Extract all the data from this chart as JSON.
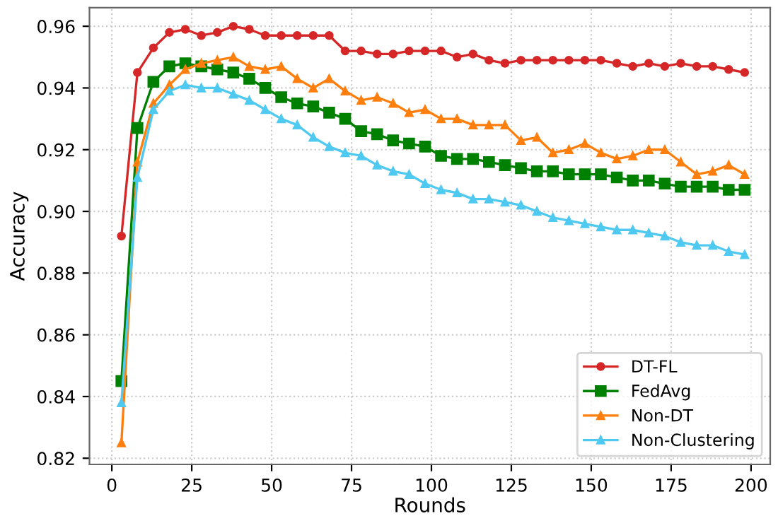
{
  "chart_data": {
    "type": "line",
    "xlabel": "Rounds",
    "ylabel": "Accuracy",
    "xlim": [
      -7,
      206
    ],
    "ylim": [
      0.818,
      0.966
    ],
    "xticks": [
      0,
      25,
      50,
      75,
      100,
      125,
      150,
      175,
      200
    ],
    "yticks": [
      {
        "value": 0.82,
        "label": "0.82"
      },
      {
        "value": 0.84,
        "label": "0.84"
      },
      {
        "value": 0.86,
        "label": "0.86"
      },
      {
        "value": 0.88,
        "label": "0.88"
      },
      {
        "value": 0.9,
        "label": "0.90"
      },
      {
        "value": 0.92,
        "label": "0.92"
      },
      {
        "value": 0.94,
        "label": "0.94"
      },
      {
        "value": 0.96,
        "label": "0.96"
      }
    ],
    "grid": true,
    "legend": "bottom right",
    "line_style": "solid",
    "x": [
      3,
      8,
      13,
      18,
      23,
      28,
      33,
      38,
      43,
      48,
      53,
      58,
      63,
      68,
      73,
      78,
      83,
      88,
      93,
      98,
      103,
      108,
      113,
      118,
      123,
      128,
      133,
      138,
      143,
      148,
      153,
      158,
      163,
      168,
      173,
      178,
      183,
      188,
      193,
      198
    ],
    "series": [
      {
        "name": "DT-FL",
        "color": "#d62728",
        "marker": "circle",
        "values": [
          0.892,
          0.945,
          0.953,
          0.958,
          0.959,
          0.957,
          0.958,
          0.96,
          0.959,
          0.957,
          0.957,
          0.957,
          0.957,
          0.957,
          0.952,
          0.952,
          0.951,
          0.951,
          0.952,
          0.952,
          0.952,
          0.95,
          0.951,
          0.949,
          0.948,
          0.949,
          0.949,
          0.949,
          0.949,
          0.949,
          0.949,
          0.948,
          0.947,
          0.948,
          0.947,
          0.948,
          0.947,
          0.947,
          0.946,
          0.945
        ]
      },
      {
        "name": "FedAvg",
        "color": "#008000",
        "marker": "square",
        "values": [
          0.845,
          0.927,
          0.942,
          0.947,
          0.948,
          0.947,
          0.946,
          0.945,
          0.943,
          0.94,
          0.937,
          0.935,
          0.934,
          0.932,
          0.93,
          0.926,
          0.925,
          0.923,
          0.922,
          0.921,
          0.918,
          0.917,
          0.917,
          0.916,
          0.915,
          0.914,
          0.913,
          0.913,
          0.912,
          0.912,
          0.912,
          0.911,
          0.91,
          0.91,
          0.909,
          0.908,
          0.908,
          0.908,
          0.907,
          0.907
        ]
      },
      {
        "name": "Non-DT",
        "color": "#ff7f0e",
        "marker": "triangle",
        "values": [
          0.825,
          0.916,
          0.935,
          0.941,
          0.946,
          0.948,
          0.949,
          0.95,
          0.947,
          0.946,
          0.947,
          0.943,
          0.94,
          0.943,
          0.939,
          0.936,
          0.937,
          0.935,
          0.932,
          0.933,
          0.93,
          0.93,
          0.928,
          0.928,
          0.928,
          0.923,
          0.924,
          0.919,
          0.92,
          0.922,
          0.919,
          0.917,
          0.918,
          0.92,
          0.92,
          0.916,
          0.912,
          0.913,
          0.915,
          0.912
        ]
      },
      {
        "name": "Non-Clustering",
        "color": "#4fc9f0",
        "marker": "triangle",
        "values": [
          0.838,
          0.911,
          0.933,
          0.939,
          0.941,
          0.94,
          0.94,
          0.938,
          0.936,
          0.933,
          0.93,
          0.928,
          0.924,
          0.921,
          0.919,
          0.918,
          0.915,
          0.913,
          0.912,
          0.909,
          0.907,
          0.906,
          0.904,
          0.904,
          0.903,
          0.902,
          0.9,
          0.898,
          0.897,
          0.896,
          0.895,
          0.894,
          0.894,
          0.893,
          0.892,
          0.89,
          0.889,
          0.889,
          0.887,
          0.886
        ]
      }
    ]
  }
}
